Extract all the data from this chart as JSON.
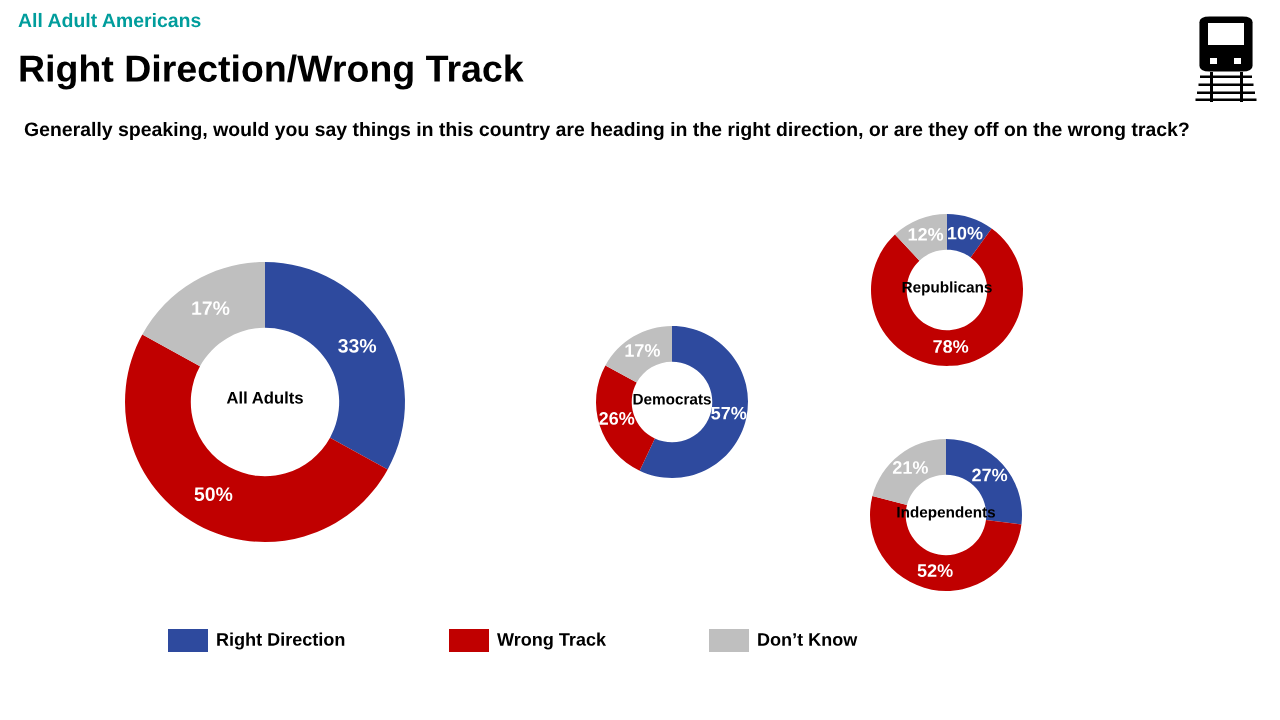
{
  "chart_data": [
    {
      "type": "donut",
      "title": "All Adults",
      "categories": [
        "Right Direction",
        "Wrong Track",
        "Don’t Know"
      ],
      "values": [
        33,
        50,
        17
      ],
      "value_labels": [
        "33%",
        "50%",
        "17%"
      ],
      "colors": [
        "#2e4a9e",
        "#c00000",
        "#bfbfbf"
      ],
      "legend": "bottom",
      "annotations": [
        "All Adult Americans",
        "Right Direction/Wrong Track",
        "Generally speaking, would you say things in this country are heading in the right direction, or are they off on the wrong track?"
      ]
    },
    {
      "type": "donut",
      "title": "Democrats",
      "categories": [
        null,
        null,
        null
      ],
      "values": [
        57,
        26,
        17
      ],
      "value_labels": [
        "57%",
        "26%",
        "17%"
      ],
      "colors": [
        "#2e4a9e",
        "#c00000",
        "#bfbfbf"
      ]
    },
    {
      "type": "donut",
      "title": "Republicans",
      "categories": [
        null,
        null,
        null
      ],
      "values": [
        10,
        78,
        12
      ],
      "value_labels": [
        "10%",
        "78%",
        "12%"
      ],
      "colors": [
        "#2e4a9e",
        "#c00000",
        "#bfbfbf"
      ]
    },
    {
      "type": "donut",
      "title": "Independents",
      "categories": [
        null,
        null,
        null
      ],
      "values": [
        27,
        52,
        21
      ],
      "value_labels": [
        "27%",
        "52%",
        "21%"
      ],
      "colors": [
        "#2e4a9e",
        "#c00000",
        "#bfbfbf"
      ]
    }
  ]
}
